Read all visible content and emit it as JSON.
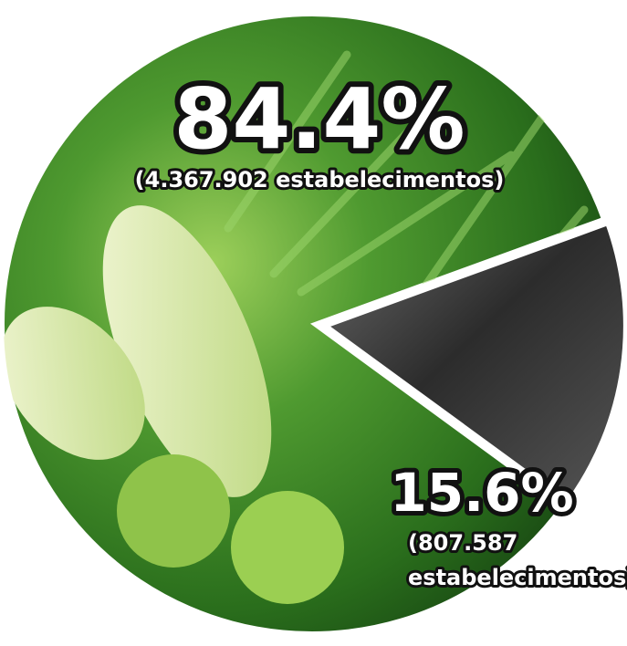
{
  "chart_data": {
    "type": "pie",
    "slices": [
      {
        "value": 84.4,
        "label": "84.4%",
        "detail": "(4.367.902 estabelecimentos)",
        "color": "#3d8a2a"
      },
      {
        "value": 15.6,
        "label": "15.6%",
        "detail_lines": [
          "(807.587",
          "estabelecimentos)"
        ],
        "color": "#3a3a3a"
      }
    ]
  }
}
